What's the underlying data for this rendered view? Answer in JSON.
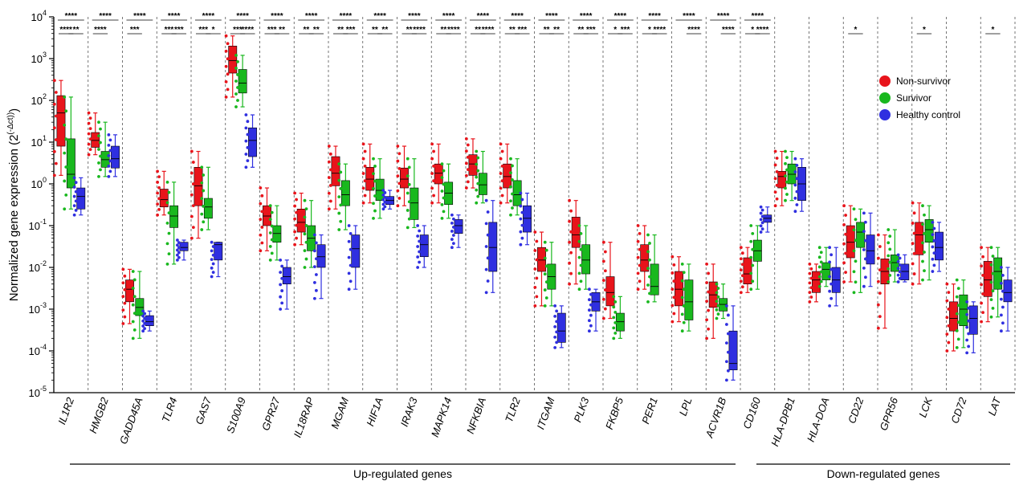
{
  "chart_data": {
    "type": "box",
    "ylabel": "Normalized gene expression (2^(-Δct))",
    "yscale": "log",
    "ylim": [
      1e-05,
      10000
    ],
    "yticks": [
      "10^-5",
      "10^-4",
      "10^-3",
      "10^-2",
      "10^-1",
      "10^0",
      "10^1",
      "10^2",
      "10^3",
      "10^4"
    ],
    "grid": false,
    "legend_position": "top-right",
    "series": [
      {
        "name": "Non-survivor",
        "color": "#e8141b"
      },
      {
        "name": "Survivor",
        "color": "#19b81e"
      },
      {
        "name": "Healthy control",
        "color": "#2f2fe0"
      }
    ],
    "groups": [
      {
        "label": "Up-regulated genes",
        "from": "IL1R2",
        "to": "ACVR1B"
      },
      {
        "label": "Down-regulated genes",
        "from": "CD160",
        "to": "LAT"
      }
    ],
    "genes": [
      {
        "name": "IL1R2",
        "boxes": [
          [
            1.6,
            8,
            50,
            130,
            300
          ],
          [
            0.25,
            0.8,
            1.7,
            12,
            120
          ],
          [
            0.18,
            0.25,
            0.5,
            0.8,
            1.4
          ]
        ],
        "sig_top": "****",
        "sig_ns": "****",
        "sig_sh": "**"
      },
      {
        "name": "HMGB2",
        "boxes": [
          [
            5,
            7.5,
            11,
            17,
            50
          ],
          [
            1.5,
            2.5,
            3.8,
            6,
            30
          ],
          [
            1.5,
            2.4,
            4,
            8,
            15
          ]
        ],
        "sig_top": "****",
        "sig_ns": "****",
        "sig_sh": ""
      },
      {
        "name": "GADD45A",
        "boxes": [
          [
            0.00045,
            0.0015,
            0.003,
            0.005,
            0.009
          ],
          [
            0.0002,
            0.0007,
            0.0011,
            0.0018,
            0.008
          ],
          [
            0.0003,
            0.0004,
            0.0005,
            0.0007,
            0.0009
          ]
        ],
        "sig_top": "****",
        "sig_ns": "***",
        "sig_sh": ""
      },
      {
        "name": "TLR4",
        "boxes": [
          [
            0.18,
            0.28,
            0.42,
            0.75,
            2
          ],
          [
            0.012,
            0.09,
            0.17,
            0.3,
            1.1
          ],
          [
            0.015,
            0.025,
            0.03,
            0.04,
            0.045
          ]
        ],
        "sig_top": "****",
        "sig_ns": "***",
        "sig_sh": "***"
      },
      {
        "name": "GAS7",
        "boxes": [
          [
            0.05,
            0.3,
            0.9,
            2.5,
            6
          ],
          [
            0.08,
            0.15,
            0.28,
            0.45,
            2.5
          ],
          [
            0.006,
            0.015,
            0.035,
            0.04,
            0.04
          ]
        ],
        "sig_top": "****",
        "sig_ns": "***",
        "sig_sh": "*"
      },
      {
        "name": "S100A9",
        "boxes": [
          [
            120,
            450,
            900,
            2000,
            3500
          ],
          [
            70,
            150,
            260,
            550,
            1200
          ],
          [
            2.5,
            4.5,
            11,
            22,
            45
          ]
        ],
        "sig_top": "****",
        "sig_ns": "***",
        "sig_sh": "****"
      },
      {
        "name": "GPR27",
        "boxes": [
          [
            0.025,
            0.1,
            0.17,
            0.3,
            0.8
          ],
          [
            0.015,
            0.04,
            0.065,
            0.1,
            0.3
          ],
          [
            0.001,
            0.004,
            0.006,
            0.01,
            0.015
          ]
        ],
        "sig_top": "****",
        "sig_ns": "***",
        "sig_sh": "**"
      },
      {
        "name": "IL18RAP",
        "boxes": [
          [
            0.035,
            0.07,
            0.12,
            0.25,
            0.6
          ],
          [
            0.01,
            0.025,
            0.05,
            0.1,
            0.4
          ],
          [
            0.0018,
            0.01,
            0.018,
            0.035,
            0.06
          ]
        ],
        "sig_top": "****",
        "sig_ns": "**",
        "sig_sh": "**"
      },
      {
        "name": "MGAM",
        "boxes": [
          [
            0.25,
            0.9,
            1.8,
            4.5,
            8
          ],
          [
            0.08,
            0.3,
            0.55,
            1.2,
            3
          ],
          [
            0.003,
            0.01,
            0.028,
            0.06,
            0.1
          ]
        ],
        "sig_top": "****",
        "sig_ns": "**",
        "sig_sh": "***"
      },
      {
        "name": "HIF1A",
        "boxes": [
          [
            0.35,
            0.7,
            1.3,
            2.5,
            9
          ],
          [
            0.15,
            0.4,
            0.7,
            1.3,
            4
          ],
          [
            0.25,
            0.32,
            0.4,
            0.5,
            0.7
          ]
        ],
        "sig_top": "****",
        "sig_ns": "**",
        "sig_sh": "**"
      },
      {
        "name": "IRAK3",
        "boxes": [
          [
            0.3,
            0.8,
            1.3,
            2.4,
            8
          ],
          [
            0.09,
            0.14,
            0.35,
            0.8,
            4
          ],
          [
            0.01,
            0.018,
            0.035,
            0.06,
            0.1
          ]
        ],
        "sig_top": "****",
        "sig_ns": "**",
        "sig_sh": "****"
      },
      {
        "name": "MAPK14",
        "boxes": [
          [
            0.35,
            1,
            1.8,
            3,
            9
          ],
          [
            0.15,
            0.32,
            0.6,
            1.1,
            3
          ],
          [
            0.03,
            0.065,
            0.1,
            0.14,
            0.18
          ]
        ],
        "sig_top": "****",
        "sig_ns": "**",
        "sig_sh": "****"
      },
      {
        "name": "NFKBIA",
        "boxes": [
          [
            0.8,
            1.6,
            3,
            5,
            12
          ],
          [
            0.35,
            0.55,
            0.95,
            1.8,
            6
          ],
          [
            0.0025,
            0.008,
            0.03,
            0.12,
            0.4
          ]
        ],
        "sig_top": "****",
        "sig_ns": "**",
        "sig_sh": "****"
      },
      {
        "name": "TLR2",
        "boxes": [
          [
            0.35,
            0.8,
            1.5,
            3,
            9
          ],
          [
            0.18,
            0.3,
            0.55,
            1.2,
            4
          ],
          [
            0.035,
            0.07,
            0.15,
            0.3,
            0.6
          ]
        ],
        "sig_top": "****",
        "sig_ns": "**",
        "sig_sh": "***"
      },
      {
        "name": "ITGAM",
        "boxes": [
          [
            0.0012,
            0.008,
            0.015,
            0.03,
            0.07
          ],
          [
            0.0012,
            0.003,
            0.006,
            0.012,
            0.04
          ],
          [
            0.00012,
            0.00016,
            0.0003,
            0.0008,
            0.0012
          ]
        ],
        "sig_top": "****",
        "sig_ns": "**",
        "sig_sh": "**"
      },
      {
        "name": "PLK3",
        "boxes": [
          [
            0.004,
            0.03,
            0.06,
            0.16,
            0.4
          ],
          [
            0.003,
            0.007,
            0.015,
            0.035,
            0.1
          ],
          [
            0.0003,
            0.0009,
            0.0015,
            0.0025,
            0.003
          ]
        ],
        "sig_top": "****",
        "sig_ns": "**",
        "sig_sh": "***"
      },
      {
        "name": "FKBP5",
        "boxes": [
          [
            0.0006,
            0.0012,
            0.0025,
            0.006,
            0.04
          ],
          [
            0.0002,
            0.0003,
            0.0005,
            0.0008,
            0.002
          ],
          [
            0,
            0,
            0,
            0,
            0
          ]
        ],
        "sig_top": "****",
        "sig_ns": "*",
        "sig_sh": "***"
      },
      {
        "name": "PER1",
        "boxes": [
          [
            0.003,
            0.008,
            0.015,
            0.035,
            0.1
          ],
          [
            0.0015,
            0.0022,
            0.0035,
            0.012,
            0.06
          ],
          [
            0,
            0,
            0,
            0,
            0
          ]
        ],
        "sig_top": "****",
        "sig_ns": "*",
        "sig_sh": "****"
      },
      {
        "name": "LPL",
        "boxes": [
          [
            0.0005,
            0.0012,
            0.003,
            0.008,
            0.018
          ],
          [
            0.0003,
            0.00055,
            0.0015,
            0.005,
            0.012
          ],
          [
            0,
            0,
            0,
            0,
            0
          ]
        ],
        "sig_top": "****",
        "sig_ns": "",
        "sig_sh": "****"
      },
      {
        "name": "ACVR1B",
        "boxes": [
          [
            0.0002,
            0.0011,
            0.0022,
            0.0045,
            0.012
          ],
          [
            0.0006,
            0.0009,
            0.0013,
            0.0018,
            0.004
          ],
          [
            2e-05,
            3.5e-05,
            5e-05,
            0.0003,
            0.0012
          ]
        ],
        "sig_top": "****",
        "sig_ns": "",
        "sig_sh": "****"
      },
      {
        "name": "CD160",
        "boxes": [
          [
            0.0025,
            0.004,
            0.007,
            0.017,
            0.03
          ],
          [
            0.003,
            0.014,
            0.025,
            0.045,
            0.1
          ],
          [
            0.07,
            0.12,
            0.15,
            0.18,
            0.28
          ]
        ],
        "sig_top": "****",
        "sig_ns": "*",
        "sig_sh": "****"
      },
      {
        "name": "HLA-DPB1",
        "boxes": [
          [
            0.3,
            0.8,
            1.5,
            2,
            6
          ],
          [
            0.4,
            1,
            1.7,
            3,
            6
          ],
          [
            0.22,
            0.4,
            1,
            2.5,
            4
          ]
        ],
        "sig_top": "",
        "sig_ns": "",
        "sig_sh": ""
      },
      {
        "name": "HLA-DOA",
        "boxes": [
          [
            0.0015,
            0.0025,
            0.005,
            0.008,
            0.012
          ],
          [
            0.0035,
            0.005,
            0.009,
            0.013,
            0.03
          ],
          [
            0.0012,
            0.0025,
            0.005,
            0.01,
            0.03
          ]
        ],
        "sig_top": "",
        "sig_ns": "",
        "sig_sh": ""
      },
      {
        "name": "CD22",
        "boxes": [
          [
            0.0045,
            0.017,
            0.04,
            0.1,
            0.3
          ],
          [
            0.0025,
            0.03,
            0.07,
            0.12,
            0.25
          ],
          [
            0.0035,
            0.012,
            0.025,
            0.06,
            0.2
          ]
        ],
        "sig_top": "",
        "sig_ns": "*",
        "sig_sh": ""
      },
      {
        "name": "GPR56",
        "boxes": [
          [
            0.00035,
            0.004,
            0.008,
            0.016,
            0.06
          ],
          [
            0.0045,
            0.008,
            0.013,
            0.02,
            0.08
          ],
          [
            0.0045,
            0.005,
            0.008,
            0.012,
            0.02
          ]
        ],
        "sig_top": "",
        "sig_ns": "",
        "sig_sh": ""
      },
      {
        "name": "LCK",
        "boxes": [
          [
            0.004,
            0.02,
            0.06,
            0.12,
            0.35
          ],
          [
            0.005,
            0.04,
            0.08,
            0.14,
            0.3
          ],
          [
            0.008,
            0.015,
            0.03,
            0.07,
            0.12
          ]
        ],
        "sig_top": "",
        "sig_ns": "*",
        "sig_sh": ""
      },
      {
        "name": "CD72",
        "boxes": [
          [
            0.0001,
            0.0003,
            0.0006,
            0.0015,
            0.004
          ],
          [
            0.00012,
            0.0004,
            0.001,
            0.0022,
            0.005
          ],
          [
            9e-05,
            0.00025,
            0.0006,
            0.0012,
            0.0015
          ]
        ],
        "sig_top": "",
        "sig_ns": "",
        "sig_sh": ""
      },
      {
        "name": "LAT",
        "boxes": [
          [
            0.0005,
            0.002,
            0.005,
            0.014,
            0.03
          ],
          [
            0.00065,
            0.003,
            0.008,
            0.017,
            0.03
          ],
          [
            0.0003,
            0.0015,
            0.0025,
            0.005,
            0.01
          ]
        ],
        "sig_top": "",
        "sig_ns": "*",
        "sig_sh": ""
      }
    ]
  }
}
